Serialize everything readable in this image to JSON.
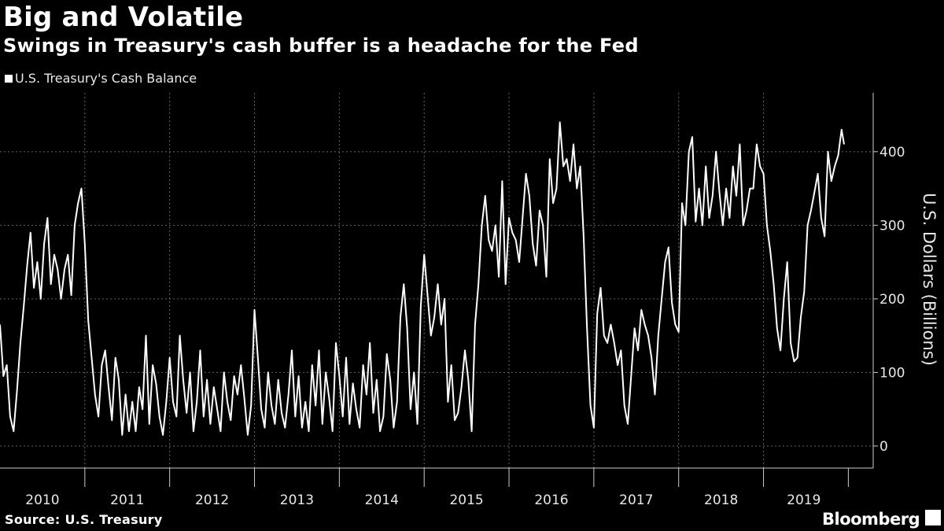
{
  "title": "Big and Volatile",
  "subtitle": "Swings in Treasury's cash buffer is a headache for the Fed",
  "footer": {
    "source": "Source: U.S. Treasury",
    "brand": "Bloomberg"
  },
  "colors": {
    "background": "#000000",
    "line": "#ffffff",
    "grid": "#666666"
  },
  "chart_data": {
    "type": "line",
    "title": "Big and Volatile",
    "subtitle": "Swings in Treasury's cash buffer is a headache for the Fed",
    "ylabel": "U.S. Dollars (Billions)",
    "y_axis_side": "right",
    "ylim": [
      -30,
      480
    ],
    "xlim": [
      2010.0,
      2019.95
    ],
    "yticks": [
      0,
      100,
      200,
      300,
      400
    ],
    "xtick_labels": [
      "2010",
      "2011",
      "2012",
      "2013",
      "2014",
      "2015",
      "2016",
      "2017",
      "2018",
      "2019"
    ],
    "grid": true,
    "legend": "top-left",
    "series": [
      {
        "name": "U.S. Treasury's Cash Balance",
        "x": [
          2010.0,
          2010.04,
          2010.08,
          2010.12,
          2010.16,
          2010.2,
          2010.24,
          2010.28,
          2010.32,
          2010.36,
          2010.4,
          2010.44,
          2010.48,
          2010.52,
          2010.56,
          2010.6,
          2010.64,
          2010.68,
          2010.72,
          2010.76,
          2010.8,
          2010.84,
          2010.88,
          2010.92,
          2010.96,
          2011.0,
          2011.04,
          2011.08,
          2011.12,
          2011.16,
          2011.2,
          2011.24,
          2011.28,
          2011.32,
          2011.36,
          2011.4,
          2011.44,
          2011.48,
          2011.52,
          2011.56,
          2011.6,
          2011.64,
          2011.68,
          2011.72,
          2011.76,
          2011.8,
          2011.84,
          2011.88,
          2011.92,
          2011.96,
          2012.0,
          2012.04,
          2012.08,
          2012.12,
          2012.16,
          2012.2,
          2012.24,
          2012.28,
          2012.32,
          2012.36,
          2012.4,
          2012.44,
          2012.48,
          2012.52,
          2012.56,
          2012.6,
          2012.64,
          2012.68,
          2012.72,
          2012.76,
          2012.8,
          2012.84,
          2012.88,
          2012.92,
          2012.96,
          2013.0,
          2013.04,
          2013.08,
          2013.12,
          2013.16,
          2013.2,
          2013.24,
          2013.28,
          2013.32,
          2013.36,
          2013.4,
          2013.44,
          2013.48,
          2013.52,
          2013.56,
          2013.6,
          2013.64,
          2013.68,
          2013.72,
          2013.76,
          2013.8,
          2013.84,
          2013.88,
          2013.92,
          2013.96,
          2014.0,
          2014.04,
          2014.08,
          2014.12,
          2014.16,
          2014.2,
          2014.24,
          2014.28,
          2014.32,
          2014.36,
          2014.4,
          2014.44,
          2014.48,
          2014.52,
          2014.56,
          2014.6,
          2014.64,
          2014.68,
          2014.72,
          2014.76,
          2014.8,
          2014.84,
          2014.88,
          2014.92,
          2014.96,
          2015.0,
          2015.04,
          2015.08,
          2015.12,
          2015.16,
          2015.2,
          2015.24,
          2015.28,
          2015.32,
          2015.36,
          2015.4,
          2015.44,
          2015.48,
          2015.52,
          2015.56,
          2015.6,
          2015.64,
          2015.68,
          2015.72,
          2015.76,
          2015.8,
          2015.84,
          2015.88,
          2015.92,
          2015.96,
          2016.0,
          2016.04,
          2016.08,
          2016.12,
          2016.16,
          2016.2,
          2016.24,
          2016.28,
          2016.32,
          2016.36,
          2016.4,
          2016.44,
          2016.48,
          2016.52,
          2016.56,
          2016.6,
          2016.64,
          2016.68,
          2016.72,
          2016.76,
          2016.8,
          2016.84,
          2016.88,
          2016.92,
          2016.96,
          2017.0,
          2017.04,
          2017.08,
          2017.12,
          2017.16,
          2017.2,
          2017.24,
          2017.28,
          2017.32,
          2017.36,
          2017.4,
          2017.44,
          2017.48,
          2017.52,
          2017.56,
          2017.6,
          2017.64,
          2017.68,
          2017.72,
          2017.76,
          2017.8,
          2017.84,
          2017.88,
          2017.92,
          2017.96,
          2018.0,
          2018.04,
          2018.08,
          2018.12,
          2018.16,
          2018.2,
          2018.24,
          2018.28,
          2018.32,
          2018.36,
          2018.4,
          2018.44,
          2018.48,
          2018.52,
          2018.56,
          2018.6,
          2018.64,
          2018.68,
          2018.72,
          2018.76,
          2018.8,
          2018.84,
          2018.88,
          2018.92,
          2018.96,
          2019.0,
          2019.04,
          2019.08,
          2019.12,
          2019.16,
          2019.2,
          2019.24,
          2019.28,
          2019.32,
          2019.36,
          2019.4,
          2019.44,
          2019.48,
          2019.52,
          2019.56,
          2019.6,
          2019.64,
          2019.68,
          2019.72,
          2019.76,
          2019.8,
          2019.84,
          2019.88,
          2019.92,
          2019.95
        ],
        "values": [
          165,
          95,
          110,
          40,
          20,
          75,
          140,
          190,
          245,
          290,
          215,
          250,
          200,
          275,
          310,
          220,
          260,
          240,
          200,
          240,
          260,
          205,
          300,
          330,
          350,
          275,
          170,
          120,
          70,
          40,
          110,
          130,
          80,
          35,
          120,
          90,
          15,
          70,
          20,
          60,
          20,
          80,
          50,
          150,
          30,
          110,
          85,
          40,
          15,
          60,
          120,
          60,
          40,
          150,
          90,
          45,
          100,
          20,
          60,
          130,
          40,
          90,
          30,
          80,
          50,
          20,
          100,
          60,
          35,
          95,
          70,
          110,
          65,
          15,
          55,
          185,
          120,
          50,
          25,
          100,
          55,
          30,
          90,
          45,
          25,
          70,
          130,
          40,
          95,
          25,
          60,
          20,
          110,
          55,
          130,
          30,
          100,
          65,
          20,
          140,
          95,
          40,
          120,
          30,
          85,
          50,
          25,
          110,
          70,
          140,
          45,
          90,
          20,
          40,
          125,
          90,
          25,
          60,
          175,
          220,
          160,
          50,
          100,
          30,
          190,
          260,
          205,
          150,
          175,
          220,
          165,
          200,
          60,
          110,
          35,
          45,
          80,
          130,
          90,
          20,
          165,
          220,
          300,
          340,
          280,
          265,
          300,
          230,
          360,
          220,
          310,
          290,
          280,
          250,
          310,
          370,
          340,
          275,
          245,
          320,
          300,
          230,
          390,
          330,
          350,
          440,
          380,
          390,
          360,
          410,
          350,
          380,
          285,
          160,
          55,
          25,
          180,
          215,
          150,
          140,
          165,
          140,
          110,
          130,
          55,
          30,
          95,
          160,
          130,
          185,
          165,
          150,
          120,
          70,
          150,
          200,
          250,
          270,
          195,
          165,
          155,
          330,
          300,
          400,
          420,
          305,
          350,
          300,
          380,
          310,
          340,
          400,
          345,
          300,
          350,
          310,
          380,
          340,
          410,
          300,
          320,
          350,
          350,
          410,
          380,
          370,
          300,
          265,
          220,
          160,
          130,
          200,
          250,
          140,
          115,
          120,
          175,
          210,
          300,
          320,
          345,
          370,
          310,
          285,
          400,
          360,
          380,
          395,
          430,
          410
        ],
        "color": "#ffffff"
      }
    ]
  }
}
